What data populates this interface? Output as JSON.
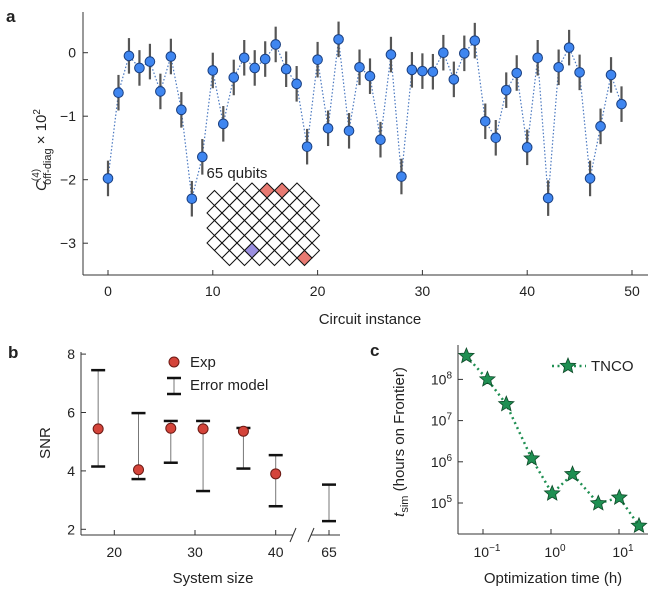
{
  "colors": {
    "panel_a_marker": "#3f86f0",
    "panel_a_line": "#4a78c0",
    "errorbar": "#555555",
    "exp_marker": "#d4443a",
    "error_model": "#111111",
    "tnco": "#1f8f52",
    "lattice_highlight_red": "#e87a72",
    "lattice_highlight_purple": "#9b8fe0"
  },
  "chart_data": [
    {
      "panel": "a",
      "type": "scatter",
      "xlabel": "Circuit instance",
      "ylabel": "C(4)off-diag × 10²",
      "ylabel_parts": {
        "symbol": "C",
        "superscript": "(4)",
        "subscript": "off-diag",
        "suffix": " × 10",
        "exponent": "2"
      },
      "xlim": [
        -1,
        51
      ],
      "ylim": [
        -3.5,
        0.7
      ],
      "xticks": [
        0,
        10,
        20,
        30,
        40,
        50
      ],
      "yticks": [
        0,
        -1,
        -2,
        -3
      ],
      "grid": false,
      "connected_by": "dotted line",
      "x": [
        0,
        1,
        2,
        3,
        4,
        5,
        6,
        7,
        8,
        9,
        10,
        11,
        12,
        13,
        14,
        15,
        16,
        17,
        18,
        19,
        20,
        21,
        22,
        23,
        24,
        25,
        26,
        27,
        28,
        29,
        30,
        31,
        32,
        33,
        34,
        35,
        36,
        37,
        38,
        39,
        40,
        41,
        42,
        43,
        44,
        45,
        46,
        47,
        48,
        49
      ],
      "y": [
        -1.98,
        -0.63,
        -0.05,
        -0.24,
        -0.14,
        -0.61,
        -0.06,
        -0.9,
        -2.3,
        -1.64,
        -0.28,
        -1.12,
        -0.39,
        -0.08,
        -0.24,
        -0.1,
        0.13,
        -0.26,
        -0.49,
        -1.48,
        -0.11,
        -1.19,
        0.21,
        -1.23,
        -0.23,
        -0.37,
        -1.37,
        -0.03,
        -1.95,
        -0.27,
        -0.29,
        -0.3,
        0.0,
        -0.42,
        -0.01,
        0.19,
        -1.08,
        -1.34,
        -0.59,
        -0.32,
        -1.49,
        -0.08,
        -2.29,
        -0.23,
        0.08,
        -0.31,
        -1.98,
        -1.16,
        -0.35,
        -0.81
      ],
      "yerr": 0.28,
      "inset": {
        "label": "65 qubits"
      }
    },
    {
      "panel": "b",
      "type": "scatter",
      "xlabel": "System size",
      "ylabel": "SNR",
      "ylim": [
        1.8,
        8.2
      ],
      "xticks": [
        "20",
        "30",
        "40",
        "65"
      ],
      "yticks": [
        2,
        4,
        6,
        8
      ],
      "axis_break": "between 40 and 65",
      "legend": {
        "placement": "top",
        "entries": [
          "Exp",
          "Error model"
        ]
      },
      "series": [
        {
          "name": "Exp",
          "x": [
            18,
            23,
            27,
            31,
            36,
            40
          ],
          "y": [
            5.44,
            4.04,
            5.46,
            5.44,
            5.36,
            3.9
          ]
        },
        {
          "name": "Error model",
          "x": [
            18,
            23,
            27,
            31,
            36,
            40,
            65
          ],
          "low": [
            4.15,
            3.72,
            4.28,
            3.31,
            4.08,
            2.79,
            2.28
          ],
          "high": [
            7.45,
            5.98,
            5.71,
            5.71,
            5.47,
            4.54,
            3.53
          ]
        }
      ]
    },
    {
      "panel": "c",
      "type": "line",
      "xlabel": "Optimization time (h)",
      "ylabel": "t_sim (hours on Frontier)",
      "ylabel_parts": {
        "symbol": "t",
        "subscript": "sim",
        "rest": " (hours on Frontier)"
      },
      "xscale": "log",
      "yscale": "log",
      "xlim": [
        0.043,
        25.7
      ],
      "ylim": [
        17800,
        620000000.0
      ],
      "xticks": [
        {
          "base": "10",
          "exp": "−1"
        },
        {
          "base": "10",
          "exp": "0"
        },
        {
          "base": "10",
          "exp": "1"
        }
      ],
      "yticks": [
        {
          "base": "10",
          "exp": "5"
        },
        {
          "base": "10",
          "exp": "6"
        },
        {
          "base": "10",
          "exp": "7"
        },
        {
          "base": "10",
          "exp": "8"
        }
      ],
      "legend": {
        "placement": "top-right",
        "entries": [
          "TNCO"
        ]
      },
      "series": [
        {
          "name": "TNCO",
          "marker": "star",
          "linestyle": "dotted",
          "x": [
            0.057,
            0.116,
            0.22,
            0.52,
            1.04,
            2.07,
            4.96,
            10.1,
            19.7
          ],
          "y": [
            370000000.0,
            100000000.0,
            25000000.0,
            1200000.0,
            170000.0,
            500000.0,
            98000.0,
            135000.0,
            28000.0
          ]
        }
      ]
    }
  ],
  "panel_labels": [
    "a",
    "b",
    "c"
  ]
}
